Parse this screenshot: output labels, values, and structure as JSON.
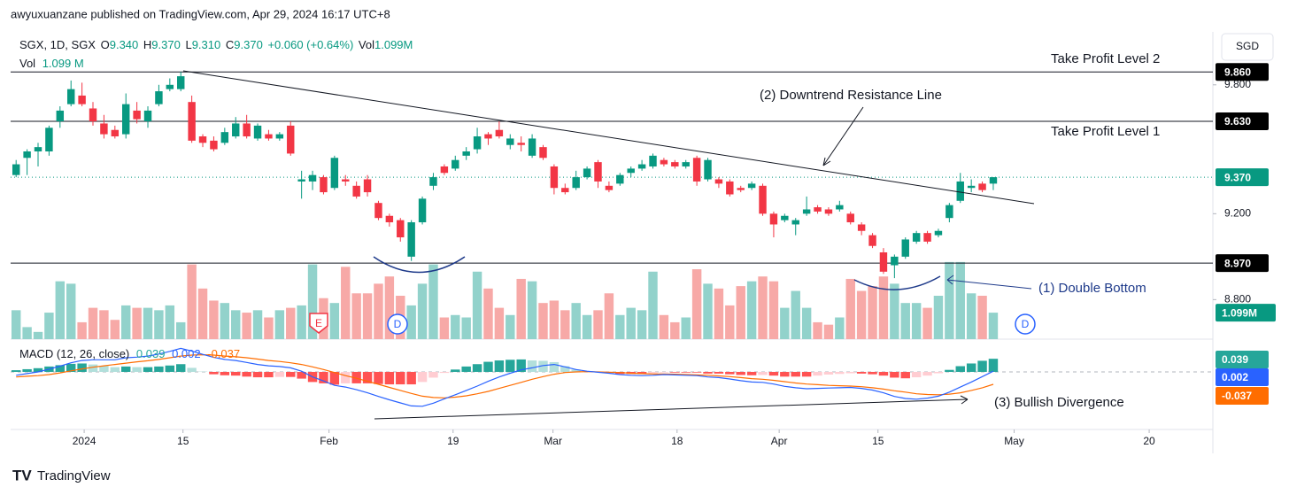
{
  "header": "awyuxuanzane published on TradingView.com, Apr 29, 2024 16:17 UTC+8",
  "footer": "TradingView",
  "currency": "SGD",
  "legend": {
    "symbol": "SGX, 1D, SGX",
    "o": "O",
    "open": "9.340",
    "h": "H",
    "high": "9.370",
    "l": "L",
    "low": "9.310",
    "c": "C",
    "close": "9.370",
    "change": "+0.060 (+0.64%)",
    "vol": "Vol",
    "volume": "1.099M",
    "vol2": "Vol",
    "volume2": "1.099 M"
  },
  "markers": {
    "earnings": "E",
    "dividend1": "D",
    "dividend2": "D"
  },
  "annotations": {
    "tp2": "Take Profit Level 2",
    "tp1": "Take Profit Level 1",
    "resistance": "(2) Downtrend Resistance Line",
    "double_bottom": "(1) Double Bottom",
    "divergence": "(3) Bullish Divergence"
  },
  "chart_data": {
    "type": "candlestick",
    "colors": {
      "up": "#089981",
      "down": "#f23645",
      "vol_up": "#92d2cb",
      "vol_down": "#f7a9a7",
      "hist_up": "#26a69a",
      "hist_up_fall": "#b2dfdb",
      "hist_down": "#ff5252",
      "hist_down_rise": "#ffcdd2",
      "macd": "#2962ff",
      "signal": "#ff6d00"
    },
    "xlim": [
      -0.5,
      109.0
    ],
    "xticks": [
      {
        "value": 6.2,
        "label": "2024"
      },
      {
        "value": 15.2,
        "label": "15"
      },
      {
        "value": 28.5,
        "label": "Feb"
      },
      {
        "value": 39.8,
        "label": "19"
      },
      {
        "value": 48.9,
        "label": "Mar"
      },
      {
        "value": 60.2,
        "label": "18"
      },
      {
        "value": 69.5,
        "label": "Apr"
      },
      {
        "value": 78.5,
        "label": "15"
      },
      {
        "value": 90.9,
        "label": "May"
      },
      {
        "value": 103.2,
        "label": "20"
      }
    ],
    "ylim": [
      8.616,
      10.03
    ],
    "yticks": [
      {
        "value": 9.8,
        "label": "9.800"
      },
      {
        "value": 9.2,
        "label": "9.200"
      },
      {
        "value": 8.8,
        "label": "8.800"
      }
    ],
    "hlines": [
      {
        "value": 9.86,
        "label": "9.860"
      },
      {
        "value": 9.63,
        "label": "9.630"
      },
      {
        "value": 8.97,
        "label": "8.970"
      }
    ],
    "last_price": {
      "value": 9.37,
      "label": "9.370"
    },
    "open": [
      9.38,
      9.46,
      9.49,
      9.49,
      9.63,
      9.71,
      9.75,
      9.69,
      9.62,
      9.59,
      9.57,
      9.68,
      9.63,
      9.71,
      9.78,
      9.78,
      9.72,
      9.56,
      9.54,
      9.53,
      9.56,
      9.62,
      9.55,
      9.57,
      9.55,
      9.61,
      9.35,
      9.35,
      9.37,
      9.32,
      9.36,
      9.33,
      9.36,
      9.25,
      9.19,
      9.17,
      9.0,
      9.16,
      9.33,
      9.42,
      9.41,
      9.47,
      9.5,
      9.57,
      9.59,
      9.52,
      9.53,
      9.47,
      9.51,
      9.42,
      9.32,
      9.32,
      9.37,
      9.44,
      9.33,
      9.34,
      9.39,
      9.41,
      9.42,
      9.45,
      9.44,
      9.42,
      9.46,
      9.36,
      9.36,
      9.35,
      9.32,
      9.32,
      9.33,
      9.2,
      9.17,
      9.15,
      9.2,
      9.23,
      9.22,
      9.22,
      9.2,
      9.15,
      9.1,
      9.02,
      8.96,
      9.0,
      9.07,
      9.11,
      9.1,
      9.18,
      9.26,
      9.32,
      9.34,
      9.34
    ],
    "high": [
      9.45,
      9.5,
      9.53,
      9.61,
      9.7,
      9.82,
      9.81,
      9.72,
      9.66,
      9.61,
      9.76,
      9.72,
      9.7,
      9.8,
      9.83,
      9.86,
      9.75,
      9.57,
      9.56,
      9.6,
      9.65,
      9.66,
      9.62,
      9.59,
      9.58,
      9.63,
      9.4,
      9.4,
      9.38,
      9.47,
      9.38,
      9.35,
      9.38,
      9.26,
      9.2,
      9.18,
      9.17,
      9.28,
      9.39,
      9.43,
      9.47,
      9.51,
      9.6,
      9.58,
      9.63,
      9.57,
      9.56,
      9.57,
      9.52,
      9.43,
      9.34,
      9.4,
      9.42,
      9.45,
      9.35,
      9.39,
      9.42,
      9.45,
      9.48,
      9.46,
      9.45,
      9.45,
      9.47,
      9.46,
      9.37,
      9.36,
      9.33,
      9.35,
      9.34,
      9.21,
      9.2,
      9.18,
      9.28,
      9.24,
      9.23,
      9.26,
      9.21,
      9.16,
      9.11,
      9.04,
      9.01,
      9.09,
      9.12,
      9.12,
      9.13,
      9.25,
      9.39,
      9.36,
      9.35,
      9.37
    ],
    "low": [
      9.37,
      9.38,
      9.42,
      9.47,
      9.6,
      9.7,
      9.7,
      9.61,
      9.55,
      9.55,
      9.55,
      9.62,
      9.6,
      9.7,
      9.77,
      9.77,
      9.53,
      9.51,
      9.49,
      9.52,
      9.55,
      9.55,
      9.54,
      9.54,
      9.54,
      9.47,
      9.27,
      9.31,
      9.29,
      9.31,
      9.33,
      9.27,
      9.28,
      9.17,
      9.14,
      9.07,
      8.98,
      9.15,
      9.31,
      9.38,
      9.4,
      9.45,
      9.48,
      9.52,
      9.55,
      9.5,
      9.49,
      9.46,
      9.45,
      9.29,
      9.29,
      9.31,
      9.36,
      9.32,
      9.3,
      9.33,
      9.37,
      9.4,
      9.41,
      9.42,
      9.41,
      9.41,
      9.33,
      9.35,
      9.32,
      9.28,
      9.3,
      9.31,
      9.19,
      9.09,
      9.16,
      9.1,
      9.19,
      9.2,
      9.19,
      9.21,
      9.15,
      9.1,
      9.04,
      8.92,
      8.9,
      8.99,
      9.06,
      9.06,
      9.09,
      9.16,
      9.25,
      9.3,
      9.3,
      9.31
    ],
    "close": [
      9.43,
      9.49,
      9.51,
      9.6,
      9.68,
      9.78,
      9.71,
      9.63,
      9.57,
      9.56,
      9.71,
      9.64,
      9.68,
      9.77,
      9.8,
      9.84,
      9.54,
      9.53,
      9.5,
      9.58,
      9.62,
      9.56,
      9.61,
      9.55,
      9.57,
      9.48,
      9.36,
      9.38,
      9.3,
      9.46,
      9.35,
      9.28,
      9.3,
      9.18,
      9.16,
      9.09,
      9.16,
      9.27,
      9.37,
      9.39,
      9.45,
      9.49,
      9.56,
      9.55,
      9.56,
      9.55,
      9.52,
      9.55,
      9.46,
      9.32,
      9.3,
      9.37,
      9.41,
      9.35,
      9.31,
      9.38,
      9.41,
      9.43,
      9.47,
      9.43,
      9.42,
      9.44,
      9.35,
      9.45,
      9.34,
      9.29,
      9.31,
      9.34,
      9.2,
      9.15,
      9.19,
      9.17,
      9.22,
      9.21,
      9.2,
      9.24,
      9.16,
      9.12,
      9.05,
      8.93,
      9.0,
      9.08,
      9.11,
      9.07,
      9.12,
      9.24,
      9.35,
      9.33,
      9.31,
      9.37
    ],
    "vlim": [
      0,
      12.6
    ],
    "volume": [
      1.2,
      0.5,
      0.3,
      1.1,
      2.4,
      2.3,
      0.7,
      1.3,
      1.2,
      0.8,
      1.4,
      1.3,
      1.3,
      1.2,
      1.4,
      0.7,
      3.1,
      2.1,
      1.6,
      1.5,
      1.2,
      1.1,
      1.2,
      0.9,
      1.2,
      1.3,
      1.4,
      3.1,
      1.7,
      1.5,
      3.0,
      1.9,
      1.9,
      2.3,
      2.6,
      1.8,
      1.4,
      2.3,
      3.1,
      0.9,
      1.0,
      0.9,
      2.8,
      2.1,
      1.3,
      1.0,
      2.5,
      2.4,
      1.5,
      1.6,
      1.2,
      1.5,
      1.0,
      1.2,
      1.9,
      1.0,
      1.3,
      1.2,
      2.8,
      1.0,
      0.7,
      0.9,
      2.9,
      2.3,
      2.1,
      1.4,
      2.2,
      2.4,
      2.6,
      2.4,
      1.3,
      2.0,
      1.3,
      0.7,
      0.6,
      0.9,
      2.5,
      2.0,
      2.2,
      2.6,
      2.3,
      1.5,
      1.5,
      1.3,
      1.8,
      3.2,
      3.2,
      1.9,
      1.8,
      1.099
    ],
    "volume_label": "1.099M",
    "macd": {
      "title": "MACD (12, 26, close)",
      "ylim": [
        -0.171,
        0.092
      ],
      "hist": [
        0.005,
        0.008,
        0.011,
        0.016,
        0.02,
        0.024,
        0.025,
        0.022,
        0.018,
        0.014,
        0.016,
        0.014,
        0.014,
        0.016,
        0.019,
        0.023,
        0.012,
        0.001,
        -0.007,
        -0.01,
        -0.011,
        -0.014,
        -0.016,
        -0.016,
        -0.015,
        -0.015,
        -0.02,
        -0.03,
        -0.034,
        -0.038,
        -0.034,
        -0.034,
        -0.034,
        -0.036,
        -0.037,
        -0.037,
        -0.037,
        -0.03,
        -0.017,
        -0.003,
        0.007,
        0.016,
        0.023,
        0.03,
        0.034,
        0.036,
        0.037,
        0.034,
        0.033,
        0.029,
        0.017,
        0.007,
        0.001,
        -0.001,
        -0.003,
        -0.006,
        -0.006,
        -0.006,
        -0.004,
        -0.002,
        -0.002,
        -0.002,
        -0.002,
        -0.005,
        -0.005,
        -0.007,
        -0.009,
        -0.01,
        -0.009,
        -0.011,
        -0.014,
        -0.014,
        -0.014,
        -0.011,
        -0.008,
        -0.006,
        -0.004,
        -0.005,
        -0.007,
        -0.011,
        -0.017,
        -0.019,
        -0.016,
        -0.011,
        -0.004,
        0.006,
        0.017,
        0.025,
        0.033,
        0.039
      ],
      "macd_line": [
        -0.01,
        -0.005,
        0.0,
        0.008,
        0.017,
        0.027,
        0.034,
        0.036,
        0.036,
        0.036,
        0.042,
        0.044,
        0.047,
        0.053,
        0.061,
        0.07,
        0.062,
        0.052,
        0.043,
        0.037,
        0.034,
        0.028,
        0.022,
        0.018,
        0.016,
        0.012,
        0.002,
        -0.015,
        -0.027,
        -0.04,
        -0.045,
        -0.053,
        -0.062,
        -0.073,
        -0.083,
        -0.092,
        -0.101,
        -0.102,
        -0.093,
        -0.08,
        -0.068,
        -0.055,
        -0.042,
        -0.028,
        -0.015,
        -0.004,
        0.006,
        0.012,
        0.019,
        0.022,
        0.015,
        0.007,
        0.002,
        -0.001,
        -0.004,
        -0.008,
        -0.01,
        -0.011,
        -0.01,
        -0.008,
        -0.009,
        -0.01,
        -0.011,
        -0.015,
        -0.017,
        -0.021,
        -0.026,
        -0.03,
        -0.031,
        -0.036,
        -0.043,
        -0.047,
        -0.05,
        -0.049,
        -0.048,
        -0.047,
        -0.046,
        -0.049,
        -0.054,
        -0.062,
        -0.073,
        -0.079,
        -0.081,
        -0.078,
        -0.072,
        -0.06,
        -0.045,
        -0.03,
        -0.014,
        0.002
      ],
      "signal": [
        -0.015,
        -0.013,
        -0.011,
        -0.008,
        -0.003,
        0.003,
        0.009,
        0.014,
        0.018,
        0.022,
        0.026,
        0.03,
        0.033,
        0.037,
        0.042,
        0.047,
        0.05,
        0.051,
        0.05,
        0.047,
        0.045,
        0.042,
        0.038,
        0.034,
        0.031,
        0.027,
        0.022,
        0.015,
        0.007,
        -0.002,
        -0.011,
        -0.019,
        -0.028,
        -0.037,
        -0.046,
        -0.055,
        -0.064,
        -0.072,
        -0.076,
        -0.077,
        -0.075,
        -0.071,
        -0.065,
        -0.058,
        -0.049,
        -0.04,
        -0.031,
        -0.022,
        -0.014,
        -0.007,
        -0.002,
        0.0,
        0.001,
        0.0,
        -0.001,
        -0.002,
        -0.004,
        -0.005,
        -0.006,
        -0.006,
        -0.007,
        -0.008,
        -0.009,
        -0.01,
        -0.012,
        -0.014,
        -0.017,
        -0.02,
        -0.022,
        -0.025,
        -0.029,
        -0.033,
        -0.036,
        -0.038,
        -0.04,
        -0.041,
        -0.042,
        -0.044,
        -0.047,
        -0.051,
        -0.056,
        -0.06,
        -0.065,
        -0.067,
        -0.068,
        -0.066,
        -0.062,
        -0.055,
        -0.047,
        -0.037
      ]
    }
  }
}
